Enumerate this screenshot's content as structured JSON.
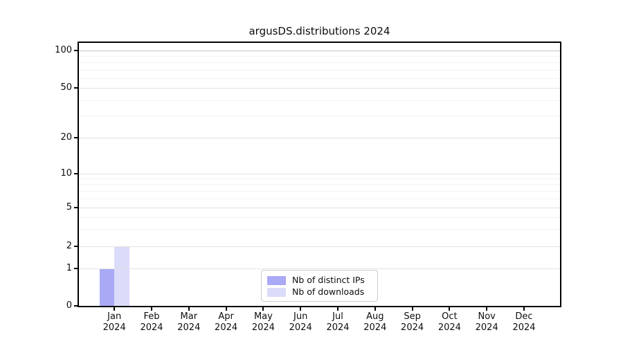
{
  "title": "argusDS.distributions 2024",
  "chart_data": {
    "type": "bar",
    "title": "argusDS.distributions 2024",
    "categories": [
      "Jan 2024",
      "Feb 2024",
      "Mar 2024",
      "Apr 2024",
      "May 2024",
      "Jun 2024",
      "Jul 2024",
      "Aug 2024",
      "Sep 2024",
      "Oct 2024",
      "Nov 2024",
      "Dec 2024"
    ],
    "series": [
      {
        "name": "Nb of distinct IPs",
        "color": "#a9a9f5",
        "values": [
          1,
          0,
          0,
          0,
          0,
          0,
          0,
          0,
          0,
          0,
          0,
          0
        ]
      },
      {
        "name": "Nb of downloads",
        "color": "#dbdbfa",
        "values": [
          2,
          0,
          0,
          0,
          0,
          0,
          0,
          0,
          0,
          0,
          0,
          0
        ]
      }
    ],
    "xlabel": "",
    "ylabel": "",
    "yscale": "symlog",
    "ylim": [
      0,
      110
    ],
    "y_major_ticks": [
      0,
      1,
      2,
      5,
      10,
      20,
      50,
      100
    ],
    "y_minor_gridlines": [
      3,
      4,
      6,
      7,
      8,
      9,
      30,
      40,
      60,
      70,
      80,
      90
    ],
    "grid": "horizontal",
    "legend_position": "lower center"
  },
  "legend": {
    "items": [
      {
        "label": "Nb of distinct IPs",
        "color": "#a9a9f5"
      },
      {
        "label": "Nb of downloads",
        "color": "#dbdbfa"
      }
    ]
  },
  "colors": {
    "bar_distinct_ips": "#a9a9f5",
    "bar_downloads": "#dbdbfa",
    "grid_major": "#e2e2e2",
    "grid_minor": "#f2f2f2",
    "grid_top": "#c4c4c4",
    "axis": "#000000",
    "legend_border": "#cccccc",
    "background": "#ffffff"
  }
}
